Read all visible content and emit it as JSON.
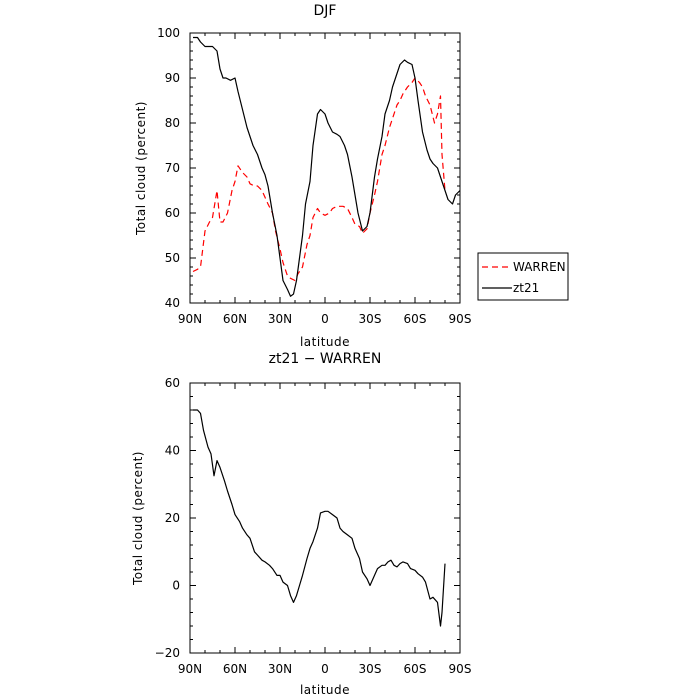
{
  "chart_data": [
    {
      "type": "line",
      "title": "DJF",
      "xlabel": "latitude",
      "ylabel": "Total cloud (percent)",
      "xlim": [
        -90,
        90
      ],
      "ylim": [
        40,
        100
      ],
      "xticks": [
        -90,
        -60,
        -30,
        0,
        30,
        60,
        90
      ],
      "xtick_labels": [
        "90N",
        "60N",
        "30N",
        "0",
        "30S",
        "60S",
        "90S"
      ],
      "yticks": [
        40,
        50,
        60,
        70,
        80,
        90,
        100
      ],
      "legend": {
        "placement": "right-bottom",
        "entries": [
          "WARREN",
          "zt21"
        ]
      },
      "series": [
        {
          "name": "WARREN",
          "color": "#ff0000",
          "dashed": true,
          "x": [
            -88,
            -85,
            -83,
            -80,
            -77,
            -75,
            -72,
            -70,
            -68,
            -65,
            -62,
            -60,
            -58,
            -55,
            -52,
            -50,
            -47,
            -45,
            -42,
            -40,
            -38,
            -35,
            -33,
            -30,
            -28,
            -25,
            -23,
            -20,
            -18,
            -15,
            -12,
            -10,
            -8,
            -5,
            -3,
            0,
            3,
            5,
            8,
            10,
            12,
            15,
            18,
            20,
            23,
            25,
            28,
            30,
            33,
            35,
            38,
            40,
            43,
            45,
            48,
            50,
            52,
            55,
            58,
            60,
            63,
            65,
            67,
            70,
            73,
            75,
            77,
            78,
            80
          ],
          "y": [
            47,
            47.5,
            48,
            56,
            58,
            59,
            65,
            58,
            58,
            60,
            65,
            67,
            70.5,
            69,
            68,
            66.5,
            66,
            66,
            65,
            63.5,
            62,
            60,
            56,
            52,
            49,
            46,
            45.5,
            45,
            46.5,
            48,
            53,
            55,
            59,
            61,
            60,
            59.5,
            60,
            61,
            61.5,
            61.5,
            61.5,
            61,
            59,
            57.5,
            57,
            55.5,
            56.5,
            60,
            64,
            67,
            73,
            75,
            79,
            81,
            84,
            85,
            86.5,
            88,
            89,
            90,
            89,
            88,
            86,
            84,
            80,
            82,
            86,
            73,
            65
          ]
        },
        {
          "name": "zt21",
          "color": "#000000",
          "dashed": false,
          "x": [
            -88,
            -85,
            -83,
            -80,
            -78,
            -75,
            -72,
            -70,
            -68,
            -66,
            -63,
            -60,
            -58,
            -55,
            -52,
            -50,
            -48,
            -45,
            -42,
            -40,
            -38,
            -35,
            -32,
            -30,
            -28,
            -25,
            -23,
            -21,
            -19,
            -17,
            -15,
            -13,
            -10,
            -8,
            -5,
            -3,
            0,
            2,
            5,
            8,
            10,
            13,
            15,
            18,
            20,
            22,
            25,
            28,
            30,
            33,
            35,
            38,
            40,
            43,
            45,
            48,
            50,
            53,
            55,
            58,
            60,
            62,
            65,
            68,
            70,
            72,
            75,
            78,
            80,
            82,
            85,
            87,
            90
          ],
          "y": [
            99,
            99,
            98,
            97,
            97,
            97,
            96,
            92,
            90,
            90,
            89.5,
            90,
            87,
            83,
            79,
            77,
            75,
            73,
            70,
            68.5,
            66,
            60,
            55,
            50,
            45,
            43,
            41.5,
            42,
            45,
            50,
            55,
            62,
            67,
            75,
            82,
            83,
            82,
            80,
            78,
            77.5,
            77,
            75,
            73,
            68,
            64,
            60,
            56,
            57,
            60,
            68,
            72,
            77,
            82,
            85,
            88,
            91,
            93,
            94,
            93.5,
            93,
            90,
            85,
            78,
            74,
            72,
            71,
            70,
            67,
            65,
            63,
            62,
            64,
            65
          ]
        }
      ]
    },
    {
      "type": "line",
      "title": "zt21 − WARREN",
      "xlabel": "latitude",
      "ylabel": "Total cloud (percent)",
      "xlim": [
        -90,
        90
      ],
      "ylim": [
        -20,
        60
      ],
      "xticks": [
        -90,
        -60,
        -30,
        0,
        30,
        60,
        90
      ],
      "xtick_labels": [
        "90N",
        "60N",
        "30N",
        "0",
        "30S",
        "60S",
        "90S"
      ],
      "yticks": [
        -20,
        0,
        20,
        40,
        60
      ],
      "series": [
        {
          "color": "#000000",
          "dashed": false,
          "x": [
            -88,
            -85,
            -83,
            -81,
            -78,
            -76,
            -74,
            -72,
            -70,
            -67,
            -65,
            -62,
            -60,
            -57,
            -55,
            -52,
            -50,
            -47,
            -45,
            -42,
            -40,
            -37,
            -35,
            -32,
            -30,
            -28,
            -25,
            -23,
            -21,
            -19,
            -17,
            -15,
            -12,
            -10,
            -8,
            -5,
            -3,
            0,
            2,
            5,
            8,
            10,
            12,
            15,
            18,
            20,
            23,
            25,
            28,
            30,
            33,
            35,
            38,
            40,
            42,
            44,
            46,
            48,
            50,
            52,
            55,
            57,
            60,
            62,
            65,
            67,
            70,
            72,
            75,
            77,
            78,
            80
          ],
          "y": [
            52,
            52,
            51,
            46,
            41,
            39,
            32.5,
            37,
            35,
            31,
            28,
            24,
            21,
            19,
            17,
            15,
            14,
            10,
            9,
            7.5,
            7,
            6,
            5,
            3,
            3,
            1,
            0,
            -3,
            -5,
            -3,
            0,
            3,
            8,
            11,
            13,
            17,
            21.5,
            22,
            22,
            21,
            20,
            17,
            16,
            15,
            14,
            11,
            8,
            4,
            2,
            0,
            3,
            5,
            6,
            6,
            7,
            7.5,
            6,
            5.5,
            6.5,
            7,
            6.5,
            5,
            4.5,
            3.5,
            2.5,
            1,
            -4,
            -3.5,
            -5,
            -12,
            -8,
            6.5
          ]
        }
      ]
    }
  ]
}
